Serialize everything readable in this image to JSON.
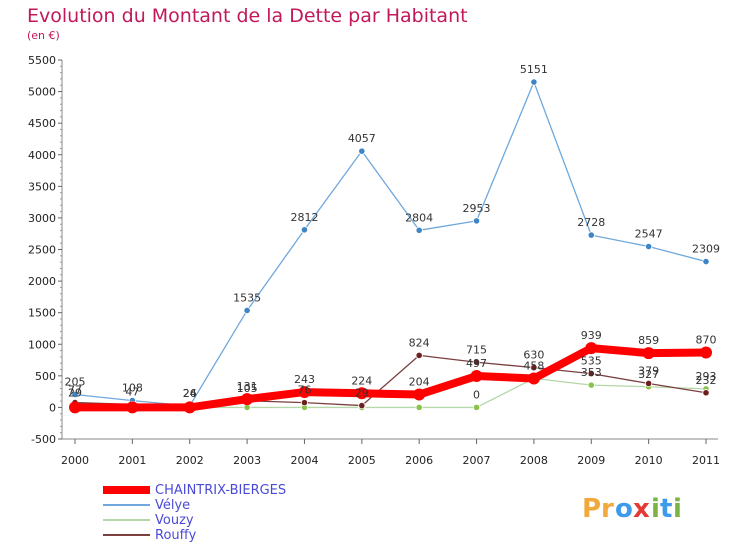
{
  "chart_data": {
    "type": "line",
    "title": "Evolution du Montant de la Dette par Habitant",
    "subtitle": "(en €)",
    "xlabel": "",
    "ylabel": "",
    "categories": [
      "2000",
      "2001",
      "2002",
      "2003",
      "2004",
      "2005",
      "2006",
      "2007",
      "2008",
      "2009",
      "2010",
      "2011"
    ],
    "ylim": [
      -500,
      5500
    ],
    "yticks": [
      -500,
      0,
      500,
      1000,
      1500,
      2000,
      2500,
      3000,
      3500,
      4000,
      4500,
      5000,
      5500
    ],
    "grid": false,
    "legend_position": "bottom-left",
    "series": [
      {
        "name": "CHAINTRIX-BIERGES",
        "color": "#ff0000",
        "marker": "#ff0000",
        "width": "thick",
        "values": [
          0,
          0,
          0,
          131,
          243,
          224,
          204,
          497,
          458,
          939,
          859,
          870
        ],
        "labels": [
          "",
          "",
          "",
          "131",
          "243",
          "224",
          "204",
          "497",
          "458",
          "939",
          "859",
          "870"
        ]
      },
      {
        "name": "Vélye",
        "color": "#6fa8dc",
        "marker": "#3d85c6",
        "width": "thin",
        "values": [
          205,
          108,
          24,
          1535,
          2812,
          4057,
          2804,
          2953,
          5151,
          2728,
          2547,
          2309
        ],
        "labels": [
          "205",
          "108",
          "24",
          "1535",
          "2812",
          "4057",
          "2804",
          "2953",
          "5151",
          "2728",
          "2547",
          "2309"
        ]
      },
      {
        "name": "Vouzy",
        "color": "#b6d7a8",
        "marker": "#8bc34a",
        "width": "thin",
        "values": [
          29,
          0,
          0,
          0,
          0,
          0,
          0,
          0,
          460,
          353,
          327,
          293
        ],
        "labels": [
          "29",
          "",
          "",
          "",
          "",
          "",
          "",
          "0",
          "",
          "353",
          "327",
          "293"
        ]
      },
      {
        "name": "Rouffy",
        "color": "#7b3f3f",
        "marker": "#6b1f1f",
        "width": "thin",
        "values": [
          77,
          47,
          26,
          105,
          76,
          29,
          824,
          715,
          630,
          535,
          379,
          232
        ],
        "labels": [
          "77",
          "47",
          "26",
          "105",
          "76",
          "29",
          "824",
          "715",
          "630",
          "535",
          "379",
          "232"
        ]
      }
    ]
  },
  "branding": {
    "logo_text": "Proxiti"
  }
}
